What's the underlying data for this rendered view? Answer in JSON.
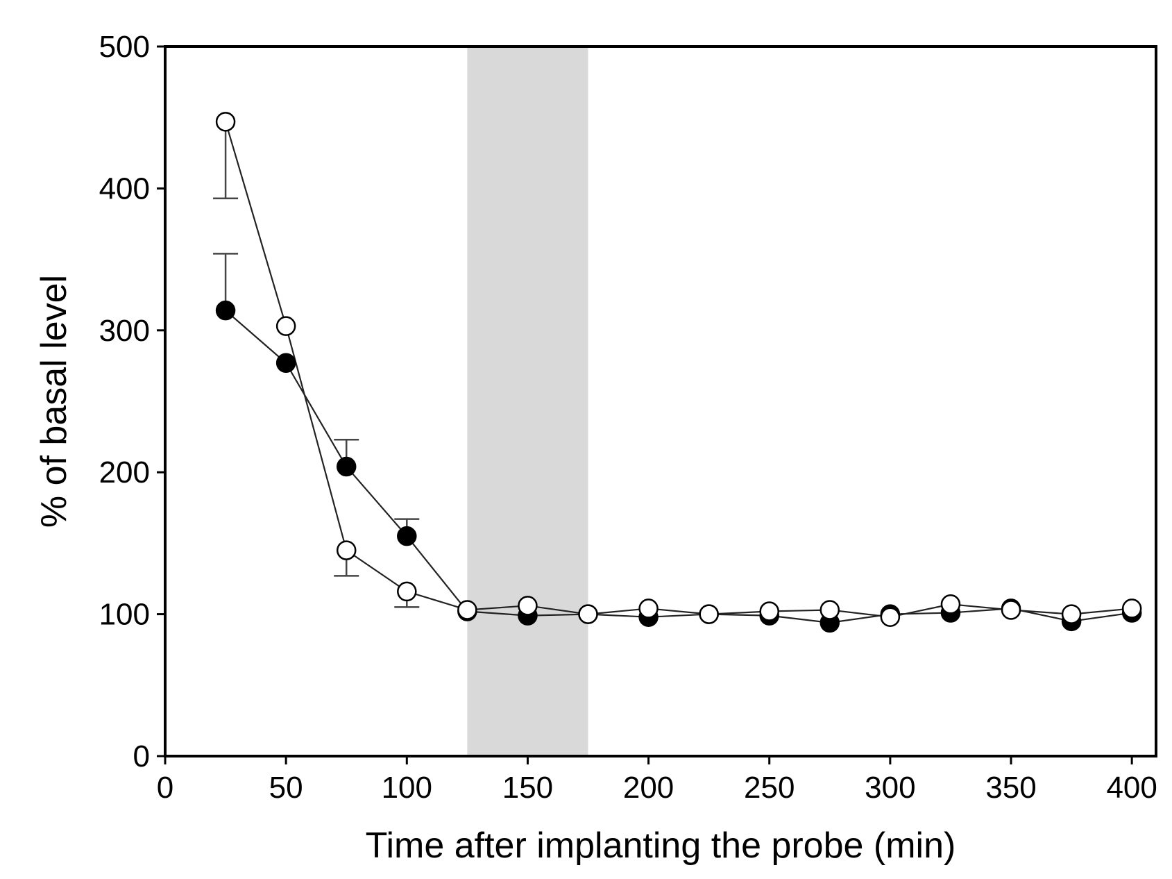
{
  "chart_data": {
    "type": "line",
    "title": "",
    "xlabel": "Time after implanting the probe (min)",
    "ylabel": "% of basal level",
    "xlim": [
      0,
      410
    ],
    "ylim": [
      0,
      500
    ],
    "xticks": [
      0,
      50,
      100,
      150,
      200,
      250,
      300,
      350,
      400
    ],
    "yticks": [
      0,
      100,
      200,
      300,
      400,
      500
    ],
    "shaded_region": {
      "x_start": 125,
      "x_end": 175,
      "color": "#d9d9d9"
    },
    "x": [
      25,
      50,
      75,
      100,
      125,
      150,
      175,
      200,
      225,
      250,
      275,
      300,
      325,
      350,
      375,
      400
    ],
    "series": [
      {
        "name": "filled",
        "marker": "filled-circle",
        "color": "#000000",
        "values": [
          314,
          277,
          204,
          155,
          102,
          99,
          100,
          98,
          100,
          99,
          94,
          100,
          101,
          104,
          95,
          101
        ],
        "error_upper": [
          354,
          null,
          223,
          167,
          null,
          null,
          null,
          null,
          null,
          null,
          null,
          null,
          null,
          null,
          null,
          null
        ]
      },
      {
        "name": "open",
        "marker": "open-circle",
        "color": "#000000",
        "values": [
          447,
          303,
          145,
          116,
          103,
          106,
          100,
          104,
          100,
          102,
          103,
          98,
          107,
          103,
          100,
          104
        ],
        "error_lower": [
          393,
          null,
          127,
          105,
          null,
          null,
          null,
          null,
          null,
          null,
          null,
          null,
          null,
          null,
          null,
          null
        ]
      }
    ]
  }
}
